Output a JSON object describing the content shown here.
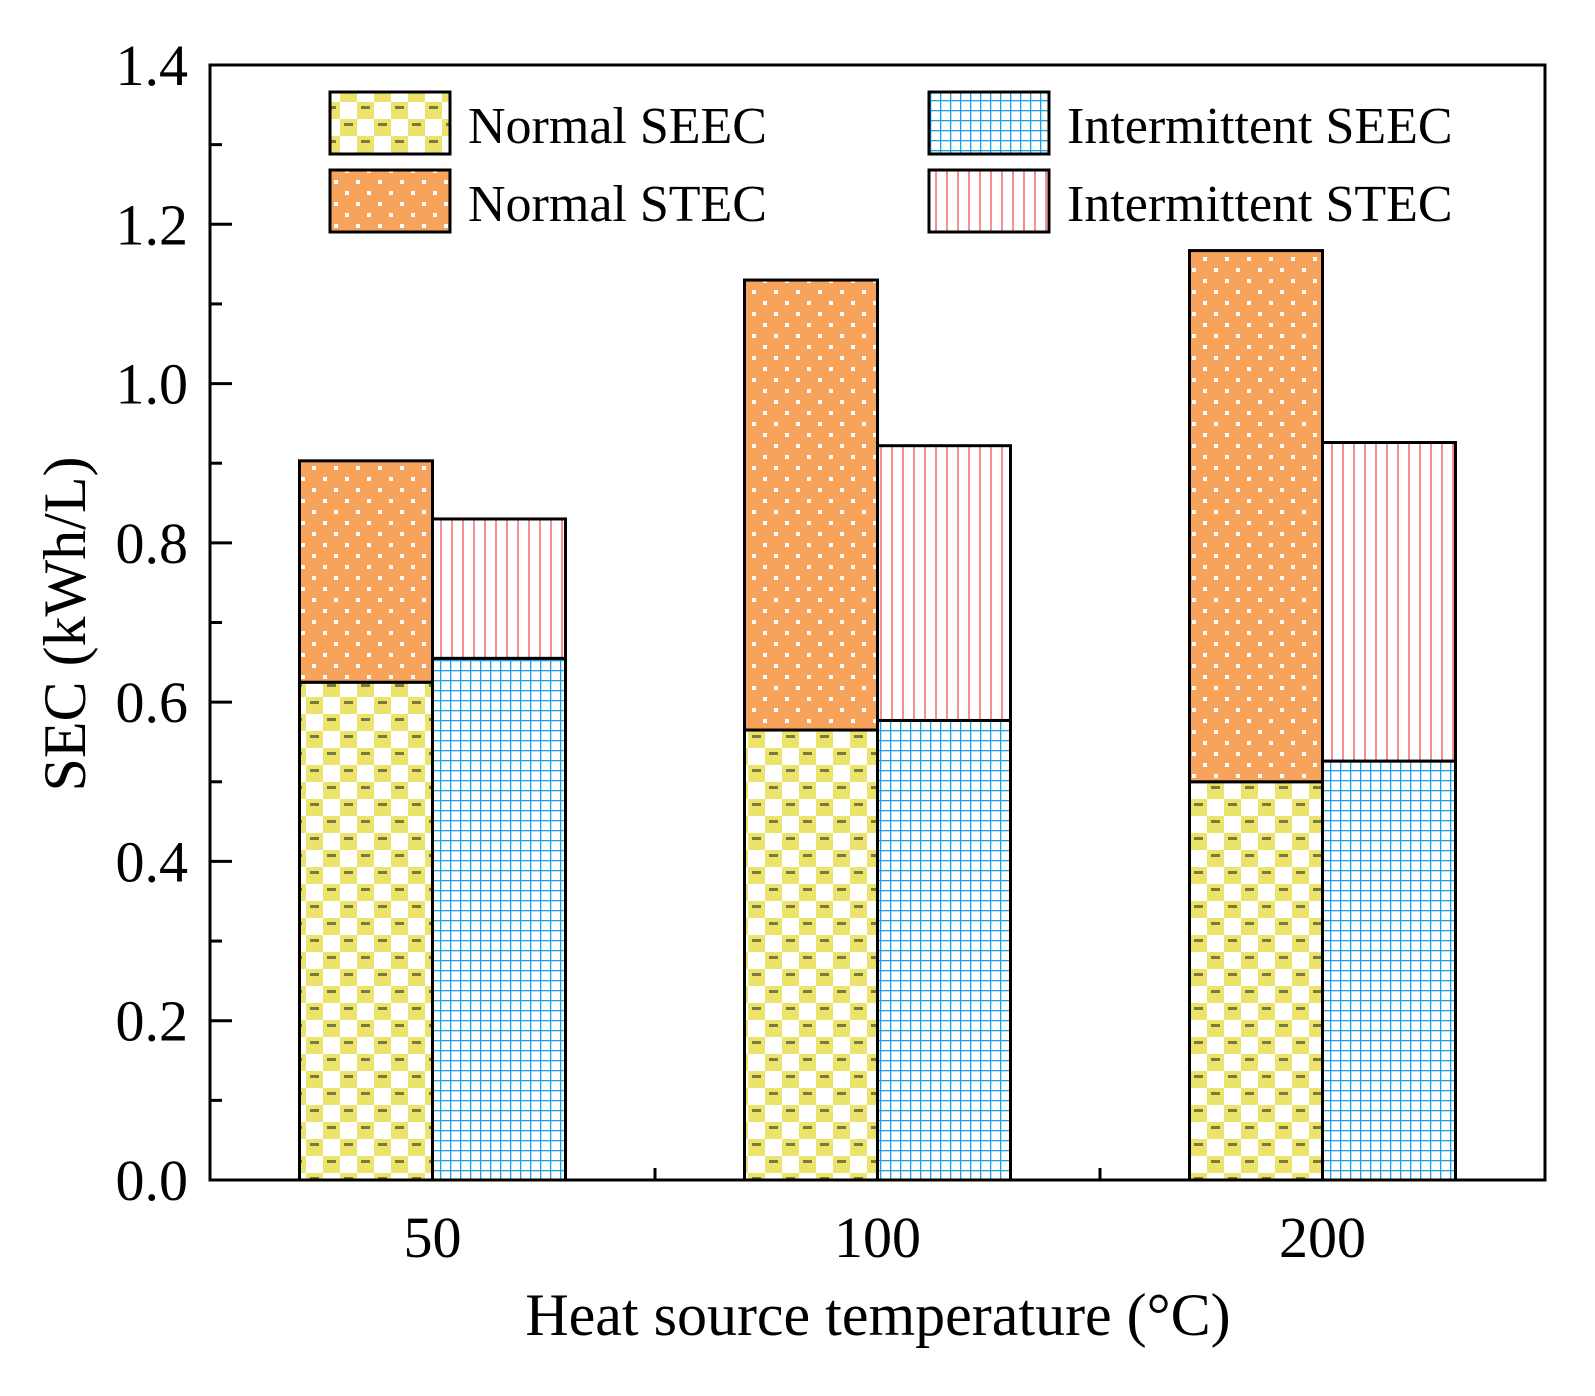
{
  "chart_data": {
    "type": "bar",
    "stacked": true,
    "title": "",
    "xlabel": "Heat source temperature (°C)",
    "ylabel": "SEC (kWh/L)",
    "categories": [
      "50",
      "100",
      "200"
    ],
    "ylim": [
      0,
      1.4
    ],
    "yticks": [
      "0.0",
      "0.2",
      "0.4",
      "0.6",
      "0.8",
      "1.0",
      "1.2",
      "1.4"
    ],
    "grid": false,
    "legend_position": "top",
    "series": [
      {
        "name": "Normal SEEC",
        "group": "Normal",
        "role": "base",
        "values": [
          0.625,
          0.565,
          0.5
        ],
        "color": "#ece36a",
        "pattern": "checker"
      },
      {
        "name": "Normal STEC",
        "group": "Normal",
        "role": "top",
        "values": [
          0.278,
          0.565,
          0.667
        ],
        "color": "#f7a35c",
        "pattern": "dots"
      },
      {
        "name": "Intermittent SEEC",
        "group": "Intermittent",
        "role": "base",
        "values": [
          0.655,
          0.577,
          0.526
        ],
        "color": "#1e9fe8",
        "pattern": "grid"
      },
      {
        "name": "Intermittent STEC",
        "group": "Intermittent",
        "role": "top",
        "values": [
          0.175,
          0.345,
          0.4
        ],
        "color": "#f06060",
        "pattern": "vlines"
      }
    ]
  }
}
